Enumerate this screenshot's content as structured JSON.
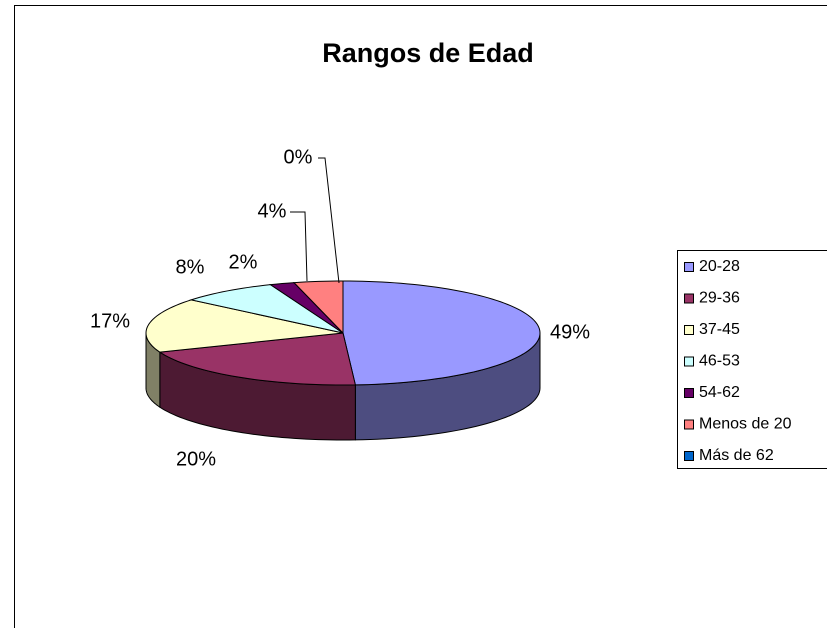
{
  "chart_data": {
    "type": "pie",
    "title": "Rangos de Edad",
    "categories": [
      "20-28",
      "29-36",
      "37-45",
      "46-53",
      "54-62",
      "Menos de 20",
      "Más de 62"
    ],
    "values": [
      49,
      20,
      17,
      8,
      2,
      4,
      0
    ],
    "value_labels": [
      "49%",
      "20%",
      "17%",
      "8%",
      "2%",
      "4%",
      "0%"
    ],
    "colors": [
      "#9999ff",
      "#993366",
      "#ffffcc",
      "#ccffff",
      "#660066",
      "#ff8080",
      "#0066cc"
    ],
    "legend": "right"
  }
}
